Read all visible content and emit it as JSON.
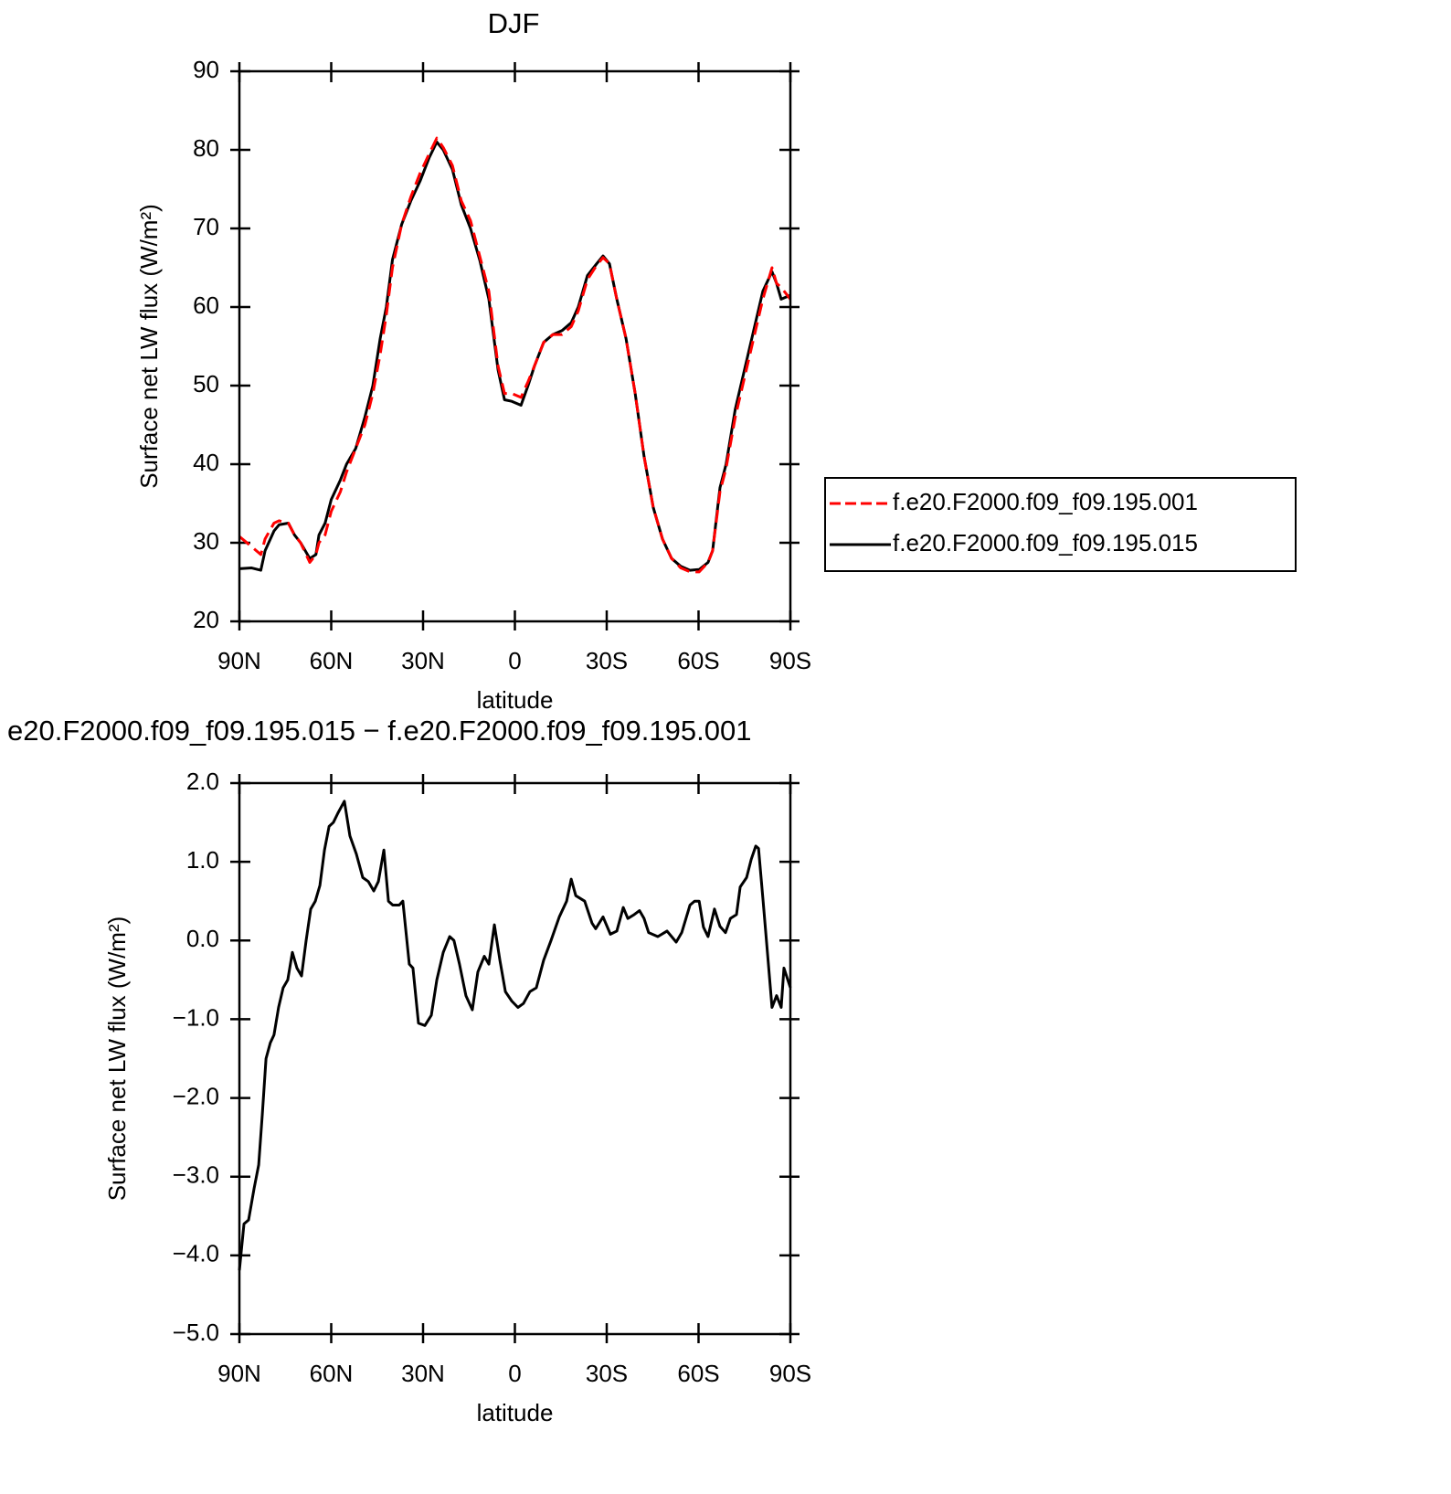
{
  "chart_data": [
    {
      "type": "line",
      "title": "DJF",
      "xlabel": "latitude",
      "ylabel": "Surface net LW flux (W/m²)",
      "x": [
        90,
        86,
        83,
        81.6,
        78.7,
        77,
        74,
        72,
        70,
        67,
        65,
        64,
        62,
        60,
        57,
        55,
        52,
        49,
        46.4,
        44,
        42,
        40,
        37,
        34,
        31,
        28,
        25.5,
        23.4,
        20.4,
        17.5,
        14.5,
        11.5,
        8.5,
        5.5,
        3.4,
        1,
        -2,
        -4.3,
        -6.4,
        -9.4,
        -12.4,
        -15.4,
        -18.4,
        -20.7,
        -23.7,
        -26.7,
        -28.8,
        -30.9,
        -33.3,
        -36.3,
        -39.3,
        -42.2,
        -45.2,
        -48.2,
        -51.2,
        -54.2,
        -57.2,
        -60.2,
        -63.1,
        -64.6,
        -67,
        -69,
        -72,
        -75,
        -78,
        -81,
        -84,
        -85.5,
        -87,
        -90
      ],
      "series": [
        {
          "name": "f.e20.F2000.f09_f09.195.001",
          "color": "#ff0000",
          "linestyle": "dashed",
          "values": [
            30.8,
            29.5,
            28.5,
            30.5,
            32.5,
            32.8,
            32.5,
            31,
            30,
            27.5,
            28.5,
            30,
            31,
            34,
            36.5,
            39,
            42,
            45,
            49,
            54,
            59,
            65,
            70.5,
            74,
            77,
            79.5,
            81.5,
            80.3,
            78,
            73.5,
            71,
            66.5,
            62,
            52.5,
            49,
            49,
            48.5,
            50.5,
            52.5,
            55.5,
            56.5,
            56.5,
            57.5,
            59.5,
            63.5,
            65.3,
            66.3,
            65.5,
            61,
            56,
            49,
            41,
            34.5,
            30.5,
            28,
            26.8,
            26.3,
            26.3,
            27.5,
            29,
            36.5,
            39.5,
            46,
            51,
            56,
            61,
            65,
            63,
            62.5,
            61
          ]
        },
        {
          "name": "f.e20.F2000.f09_f09.195.015",
          "color": "#000000",
          "linestyle": "solid",
          "values": [
            26.7,
            26.8,
            26.5,
            29,
            31.5,
            32.3,
            32.5,
            31,
            30,
            28,
            28.5,
            31,
            32.5,
            35.5,
            38,
            40,
            42,
            46,
            50,
            56,
            60,
            66,
            70.5,
            73.5,
            76,
            79,
            81,
            80,
            77.5,
            73,
            70,
            66,
            61,
            52,
            48.2,
            48,
            47.5,
            50,
            52.5,
            55.5,
            56.5,
            57,
            58,
            60,
            64,
            65.5,
            66.5,
            65.5,
            61,
            56,
            49,
            41,
            34.5,
            30.5,
            28,
            27,
            26.5,
            26.6,
            27.5,
            29,
            37,
            40,
            47,
            52,
            57,
            62,
            64.5,
            63,
            61,
            61.5
          ]
        }
      ],
      "xlim": [
        90,
        -90
      ],
      "xticks": [
        {
          "value": 90,
          "label": "90N"
        },
        {
          "value": 60,
          "label": "60N"
        },
        {
          "value": 30,
          "label": "30N"
        },
        0,
        {
          "value": -30,
          "label": "30S"
        },
        {
          "value": -60,
          "label": "60S"
        },
        {
          "value": -90,
          "label": "90S"
        }
      ],
      "ylim": [
        20,
        90
      ],
      "yticks": [
        20,
        30,
        40,
        50,
        60,
        70,
        80,
        90
      ],
      "legend": "right"
    },
    {
      "type": "line",
      "title": "e20.F2000.f09_f09.195.015 − f.e20.F2000.f09_f09.195.001",
      "xlabel": "latitude",
      "ylabel": "Surface net LW flux (W/m²)",
      "x": [
        90,
        88.5,
        87,
        85.2,
        83.7,
        82.5,
        81.3,
        79.9,
        78.7,
        77.2,
        75.7,
        74.2,
        72.7,
        71.2,
        69.7,
        68.2,
        66.7,
        65.2,
        63.7,
        62.2,
        60.7,
        59.3,
        57.8,
        55.7,
        53.9,
        51.8,
        49.7,
        47.9,
        46.1,
        44.6,
        42.8,
        41.3,
        39.9,
        37.8,
        36.6,
        34.5,
        33.3,
        31.5,
        29.4,
        27.3,
        25.5,
        23.4,
        21.3,
        19.9,
        18.1,
        16,
        13.9,
        12.1,
        10,
        8.5,
        6.7,
        4.9,
        3.1,
        1,
        -1,
        -2.8,
        -4.9,
        -7,
        -9.4,
        -11.8,
        -14.5,
        -16.9,
        -18.4,
        -19.9,
        -22.8,
        -25.2,
        -26.4,
        -28.8,
        -31.2,
        -33.3,
        -35.4,
        -36.9,
        -39,
        -40.7,
        -42.2,
        -43.7,
        -46.7,
        -49.7,
        -52.7,
        -54.5,
        -57.2,
        -58.7,
        -60.2,
        -61.6,
        -63.1,
        -65.2,
        -67,
        -68.8,
        -70.4,
        -72.4,
        -73.6,
        -75.7,
        -77.2,
        -78.7,
        -79.6,
        -81.1,
        -82.5,
        -84,
        -85.5,
        -87,
        -87.9,
        -90
      ],
      "series": [
        {
          "color": "#000000",
          "linestyle": "solid",
          "values": [
            -4.19,
            -3.6,
            -3.55,
            -3.15,
            -2.85,
            -2.2,
            -1.5,
            -1.3,
            -1.2,
            -0.85,
            -0.6,
            -0.5,
            -0.15,
            -0.35,
            -0.45,
            0,
            0.4,
            0.5,
            0.7,
            1.15,
            1.45,
            1.5,
            1.62,
            1.77,
            1.33,
            1.1,
            0.8,
            0.75,
            0.63,
            0.75,
            1.15,
            0.5,
            0.45,
            0.45,
            0.5,
            -0.3,
            -0.35,
            -1.05,
            -1.08,
            -0.95,
            -0.5,
            -0.15,
            0.05,
            0,
            -0.3,
            -0.7,
            -0.88,
            -0.4,
            -0.2,
            -0.3,
            0.2,
            -0.25,
            -0.65,
            -0.77,
            -0.85,
            -0.8,
            -0.65,
            -0.6,
            -0.25,
            0,
            0.3,
            0.5,
            0.78,
            0.57,
            0.5,
            0.22,
            0.15,
            0.3,
            0.08,
            0.12,
            0.42,
            0.28,
            0.33,
            0.38,
            0.28,
            0.1,
            0.05,
            0.12,
            -0.02,
            0.1,
            0.45,
            0.5,
            0.5,
            0.17,
            0.05,
            0.4,
            0.18,
            0.1,
            0.28,
            0.33,
            0.68,
            0.8,
            1.03,
            1.2,
            1.17,
            0.5,
            -0.15,
            -0.85,
            -0.7,
            -0.85,
            -0.35,
            -0.6
          ]
        }
      ],
      "xlim": [
        90,
        -90
      ],
      "xticks": [
        {
          "value": 90,
          "label": "90N"
        },
        {
          "value": 60,
          "label": "60N"
        },
        {
          "value": 30,
          "label": "30N"
        },
        0,
        {
          "value": -30,
          "label": "30S"
        },
        {
          "value": -60,
          "label": "60S"
        },
        {
          "value": -90,
          "label": "90S"
        }
      ],
      "ylim": [
        -5,
        2
      ],
      "yticks": [
        {
          "value": -5,
          "label": "−5.0"
        },
        {
          "value": -4,
          "label": "−4.0"
        },
        {
          "value": -3,
          "label": "−3.0"
        },
        {
          "value": -2,
          "label": "−2.0"
        },
        {
          "value": -1,
          "label": "−1.0"
        },
        {
          "value": 0,
          "label": "0.0"
        },
        {
          "value": 1,
          "label": "1.0"
        },
        {
          "value": 2,
          "label": "2.0"
        }
      ]
    }
  ]
}
